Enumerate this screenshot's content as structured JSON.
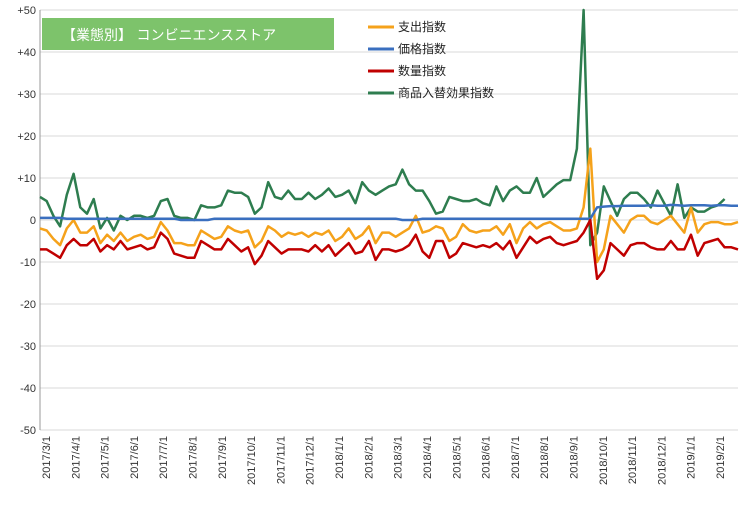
{
  "chart_data": {
    "type": "line",
    "title": "【業態別】 コンビニエンスストア",
    "title_bg_color": "#7dc36b",
    "xlabel": "",
    "ylabel": "",
    "ylim": [
      -50,
      50
    ],
    "yticks": [
      50,
      40,
      30,
      20,
      10,
      0,
      -10,
      -20,
      -30,
      -40,
      -50
    ],
    "ytick_labels": [
      "+50",
      "+40",
      "+30",
      "+20",
      "+10",
      "0",
      "-10",
      "-20",
      "-30",
      "-40",
      "-50"
    ],
    "x_tick_labels": [
      "2017/3/1",
      "2017/4/1",
      "2017/5/1",
      "2017/6/1",
      "2017/7/1",
      "2017/8/1",
      "2017/9/1",
      "2017/10/1",
      "2017/11/1",
      "2017/12/1",
      "2018/1/1",
      "2018/2/1",
      "2018/3/1",
      "2018/4/1",
      "2018/5/1",
      "2018/6/1",
      "2018/7/1",
      "2018/8/1",
      "2018/9/1",
      "2018/10/1",
      "2018/11/1",
      "2018/12/1",
      "2019/1/1",
      "2019/2/1"
    ],
    "grid": "horizontal",
    "legend_position": "top-center",
    "series": [
      {
        "name": "支出指数",
        "color": "#f5a21b",
        "values": [
          -2,
          -2.5,
          -4.5,
          -6,
          -2,
          0,
          -3,
          -3,
          -1.5,
          -5.5,
          -3.5,
          -5,
          -3,
          -5,
          -4,
          -3.5,
          -4.5,
          -4,
          -0.5,
          -2.5,
          -5.5,
          -5.5,
          -6,
          -6,
          -2.5,
          -3.5,
          -4.5,
          -4,
          -1.5,
          -2.5,
          -3,
          -2.5,
          -6.5,
          -5,
          -1.5,
          -2.5,
          -4,
          -3,
          -3.5,
          -3,
          -4,
          -3,
          -3.5,
          -2.5,
          -5,
          -4,
          -2,
          -4.5,
          -3.5,
          -1.5,
          -5.5,
          -3,
          -3,
          -4,
          -3,
          -2,
          1,
          -3,
          -2.5,
          -1.5,
          -2,
          -5,
          -4,
          -1,
          -2.5,
          -3,
          -2.5,
          -2.5,
          -1.5,
          -3.5,
          -1,
          -5.5,
          -2,
          -0.5,
          -2,
          -1,
          -0.5,
          -1.5,
          -2.5,
          -2.5,
          -2,
          3,
          17,
          -10,
          -7,
          1,
          -1,
          -3,
          0,
          1,
          1,
          -0.5,
          -1,
          0,
          1,
          -1,
          -3,
          3,
          -3,
          -1,
          -0.5,
          -0.5,
          -1,
          -1,
          -0.5
        ]
      },
      {
        "name": "価格指数",
        "color": "#3a6fbf",
        "values": [
          0.5,
          0.5,
          0.5,
          0.5,
          0.3,
          0.3,
          0.3,
          0.3,
          0.3,
          0.3,
          0.3,
          0.3,
          0.3,
          0.3,
          0.3,
          0.3,
          0.3,
          0.3,
          0.3,
          0.3,
          0.3,
          0,
          0,
          0,
          0,
          0,
          0.3,
          0.3,
          0.3,
          0.3,
          0.3,
          0.3,
          0.3,
          0.3,
          0.3,
          0.3,
          0.3,
          0.3,
          0.3,
          0.3,
          0.3,
          0.3,
          0.3,
          0.3,
          0.3,
          0.3,
          0.3,
          0.3,
          0.3,
          0.3,
          0.3,
          0.3,
          0.3,
          0.3,
          0,
          0,
          0,
          0.3,
          0.3,
          0.3,
          0.3,
          0.3,
          0.3,
          0.3,
          0.3,
          0.3,
          0.3,
          0.3,
          0.3,
          0.3,
          0.3,
          0.3,
          0.3,
          0.3,
          0.3,
          0.3,
          0.3,
          0.3,
          0.3,
          0.3,
          0.3,
          0.3,
          0.3,
          3,
          3.2,
          3.3,
          3.3,
          3.4,
          3.4,
          3.4,
          3.4,
          3.5,
          3.4,
          3.4,
          3.6,
          3.5,
          3.4,
          3.5,
          3.5,
          3.5,
          3.4,
          3.5,
          3.5,
          3.4,
          3.4
        ]
      },
      {
        "name": "数量指数",
        "color": "#c00000",
        "values": [
          -7,
          -7,
          -8,
          -9,
          -6,
          -4.5,
          -6,
          -6,
          -4.5,
          -7.5,
          -6,
          -7,
          -5,
          -7,
          -6.5,
          -6,
          -7,
          -6.5,
          -3,
          -4.5,
          -8,
          -8.5,
          -9,
          -9,
          -5,
          -6,
          -7,
          -7,
          -4.5,
          -6,
          -7.5,
          -6.5,
          -10.5,
          -8.5,
          -5,
          -6.5,
          -8,
          -7,
          -7,
          -7,
          -7.5,
          -6,
          -7.5,
          -6,
          -8.5,
          -7,
          -5.5,
          -8,
          -7.5,
          -5,
          -9.5,
          -7,
          -7,
          -7.5,
          -7,
          -6,
          -3.5,
          -7.5,
          -9,
          -5,
          -5,
          -9,
          -8,
          -5.5,
          -6,
          -6.5,
          -6,
          -6.5,
          -5.5,
          -7,
          -5,
          -9,
          -6.5,
          -4,
          -5.5,
          -4.5,
          -4,
          -5.5,
          -6,
          -5.5,
          -5,
          -3,
          0,
          -14,
          -12,
          -5.5,
          -7,
          -8.5,
          -6,
          -5.5,
          -5.5,
          -6.5,
          -7,
          -7,
          -5,
          -7,
          -7,
          -3.5,
          -8.5,
          -5.5,
          -5,
          -4.5,
          -6.5,
          -6.5,
          -7
        ]
      },
      {
        "name": "商品入替効果指数",
        "color": "#2e7d4f",
        "values": [
          5.5,
          4.5,
          1,
          -1.5,
          6,
          11,
          3,
          1.5,
          5,
          -2,
          0.5,
          -2.5,
          1,
          0,
          1,
          1,
          0.5,
          1,
          4.5,
          5,
          1,
          0.5,
          0.5,
          0,
          3.5,
          3,
          3,
          3.5,
          7,
          6.5,
          6.5,
          5.5,
          1.5,
          3,
          9,
          5.5,
          5,
          7,
          5,
          5,
          6.5,
          5,
          6,
          7.5,
          5.5,
          6,
          7,
          4,
          9,
          7,
          6,
          7,
          8,
          8.5,
          12,
          8.5,
          7,
          7,
          4.5,
          1.5,
          2,
          5.5,
          5,
          4.5,
          4.5,
          5,
          4,
          3.5,
          8,
          4.5,
          7,
          8,
          6.5,
          6.5,
          10,
          5.5,
          7,
          8.5,
          9.5,
          9.5,
          17,
          50,
          -6,
          -3,
          8,
          4.5,
          1,
          5,
          6.5,
          6.5,
          5,
          3,
          7,
          4,
          1,
          8.5,
          0.5,
          3,
          2,
          2,
          3,
          3.5,
          5
        ]
      }
    ]
  }
}
